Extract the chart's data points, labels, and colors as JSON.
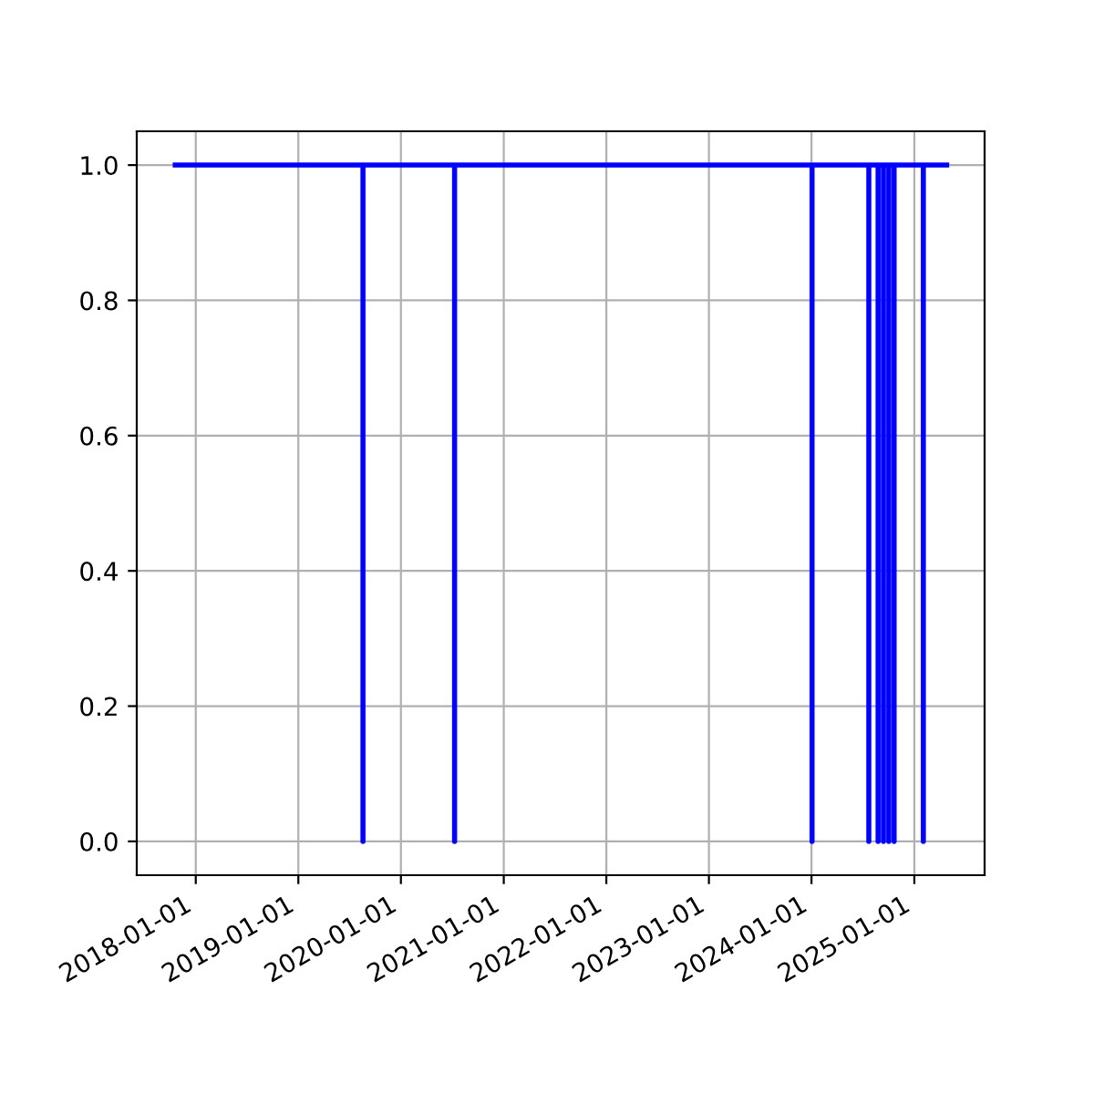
{
  "chart_data": {
    "type": "line",
    "x": [
      "2017-10-20",
      "2019-08-19",
      "2019-08-19",
      "2019-08-19",
      "2020-07-10",
      "2020-07-10",
      "2020-07-10",
      "2024-01-03",
      "2024-01-03",
      "2024-01-03",
      "2024-07-23",
      "2024-07-23",
      "2024-07-23",
      "2024-08-25",
      "2024-08-25",
      "2024-08-25",
      "2024-09-13",
      "2024-09-13",
      "2024-09-13",
      "2024-10-02",
      "2024-10-02",
      "2024-10-02",
      "2024-10-21",
      "2024-10-21",
      "2024-10-21",
      "2025-02-02",
      "2025-02-02",
      "2025-02-02",
      "2025-04-26"
    ],
    "series": [
      {
        "color": "#0000ff",
        "values": [
          1,
          1,
          0,
          1,
          1,
          0,
          1,
          1,
          0,
          1,
          1,
          0,
          1,
          1,
          0,
          1,
          1,
          0,
          1,
          1,
          0,
          1,
          1,
          0,
          1,
          1,
          0,
          1,
          1
        ]
      }
    ],
    "xlim": [
      "2017-06-05",
      "2025-09-08"
    ],
    "xticks": [
      {
        "value": "2018-01-01",
        "label": "2018-01-01"
      },
      {
        "value": "2019-01-01",
        "label": "2019-01-01"
      },
      {
        "value": "2020-01-01",
        "label": "2020-01-01"
      },
      {
        "value": "2021-01-01",
        "label": "2021-01-01"
      },
      {
        "value": "2022-01-01",
        "label": "2022-01-01"
      },
      {
        "value": "2023-01-01",
        "label": "2023-01-01"
      },
      {
        "value": "2024-01-01",
        "label": "2024-01-01"
      },
      {
        "value": "2025-01-01",
        "label": "2025-01-01"
      }
    ],
    "ylim": [
      -0.05,
      1.05
    ],
    "yticks": [
      {
        "value": 0,
        "label": "0.0"
      },
      {
        "value": 0.2,
        "label": "0.2"
      },
      {
        "value": 0.4,
        "label": "0.4"
      },
      {
        "value": 0.6,
        "label": "0.6"
      },
      {
        "value": 0.8,
        "label": "0.8"
      },
      {
        "value": 1,
        "label": "1.0"
      }
    ],
    "grid": true
  }
}
